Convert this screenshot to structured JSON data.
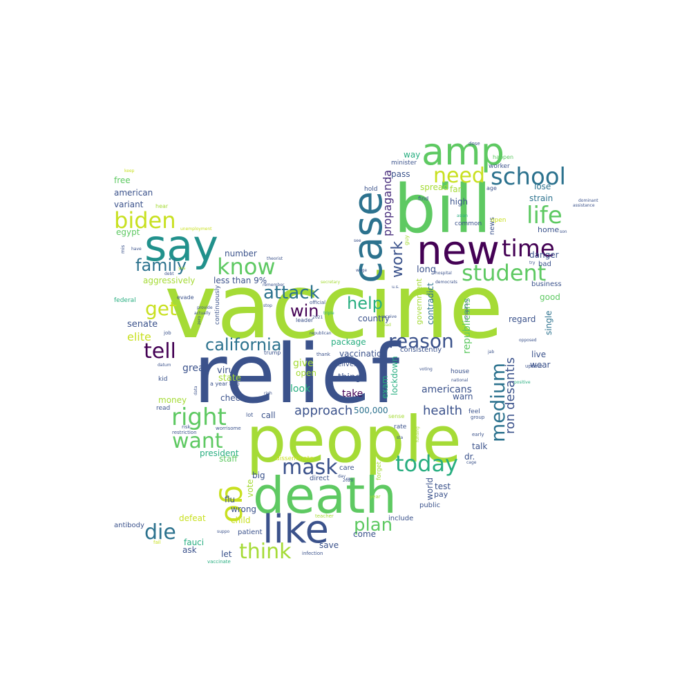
{
  "palette": {
    "lime": "#a5db36",
    "green": "#5ec962",
    "yellowgreen": "#c8e020",
    "teal": "#21918c",
    "blue": "#3b528b",
    "purple": "#440154",
    "deep": "#472d7b",
    "cyan": "#2c728e",
    "sea": "#28ae80"
  },
  "words": [
    "vaccine",
    "relief",
    "people",
    "death",
    "bill",
    "new",
    "say",
    "amp",
    "case",
    "like",
    "go",
    "know",
    "right",
    "biden",
    "school",
    "time",
    "life",
    "today",
    "student",
    "mask",
    "need",
    "think",
    "die",
    "want",
    "tell",
    "get",
    "family",
    "reason",
    "attack",
    "california",
    "help",
    "win",
    "medium",
    "plan",
    "work",
    "propaganda",
    "ron desantis",
    "approach",
    "health",
    "elite",
    "aggressively",
    "less than 9%",
    "500,000",
    "americans",
    "vaccination",
    "package",
    "give",
    "state",
    "great",
    "virus",
    "thing",
    "open",
    "look",
    "take",
    "exam",
    "lockdown",
    "country",
    "senate",
    "republicans",
    "contradict",
    "government",
    "long",
    "danger",
    "strain",
    "lose",
    "spread",
    "pass",
    "way",
    "high",
    "far",
    "american",
    "free",
    "variant",
    "egypt",
    "home",
    "bad",
    "good",
    "regard",
    "wear",
    "live",
    "single",
    "check",
    "call",
    "money",
    "staff",
    "president",
    "talk",
    "dr.",
    "test",
    "pay",
    "public",
    "world",
    "care",
    "big",
    "flu",
    "wrong",
    "vote",
    "child",
    "patient",
    "defeat",
    "fauci",
    "ask",
    "let",
    "come",
    "save",
    "include",
    "forget",
    "antibody",
    "number",
    "business",
    "deliver",
    "consistently",
    "warn",
    "continuously",
    "minister",
    "worker",
    "hold",
    "find",
    "news",
    "common",
    "open",
    "age",
    "happen",
    "dose",
    "sense",
    "rate",
    "direct",
    "trump",
    "federal",
    "evade",
    "thank",
    "official",
    "leader",
    "job",
    "kid",
    "read",
    "risk",
    "restriction",
    "worrisome",
    "lot",
    "disseminate",
    "teacher",
    "infection",
    "vaccinate",
    "fail",
    "suppo",
    "mis",
    "hear",
    "have",
    "yes",
    "debt",
    "datum",
    "update",
    "positive",
    "early",
    "group",
    "feel",
    "house",
    "voting",
    "national",
    "funding",
    "triple",
    "lead",
    "u.s.",
    "secretary",
    "hospital",
    "democrats",
    "try",
    "son",
    "dominant",
    "assistance",
    "opposed",
    "jab",
    "conspiracy",
    "keep",
    "unemployment",
    "theorist",
    "stop",
    "asian",
    "receive",
    "republican",
    "cage",
    "day",
    "2020",
    "2021",
    "year",
    "a year ago",
    "guy",
    "sta",
    "righ",
    "data",
    "actually",
    "provide",
    "remember",
    "zero",
    "see",
    "wage",
    "ra"
  ]
}
